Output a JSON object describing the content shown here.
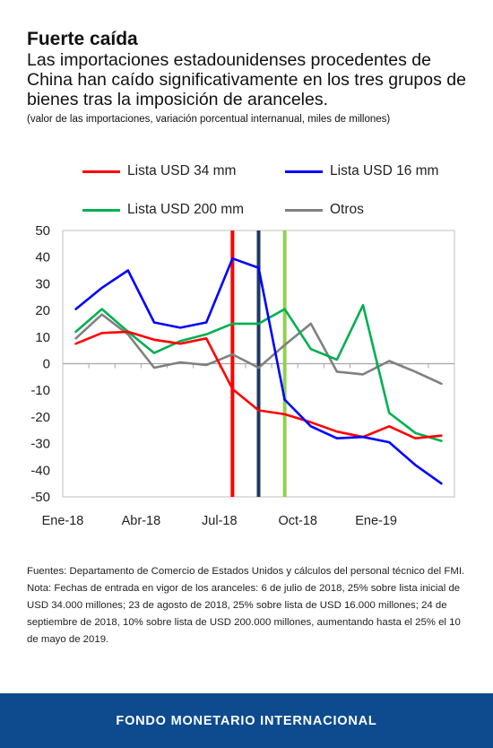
{
  "header": {
    "title": "Fuerte caída",
    "subtitle": "Las importaciones estadounidenses procedentes de China han caído significativamente en los tres grupos de bienes tras la imposición de aranceles.",
    "units": "(valor de las importaciones, variación porcentual internanual, miles de millones)"
  },
  "legend": {
    "items": [
      {
        "label": "Lista USD 34 mm",
        "color": "#ff0000"
      },
      {
        "label": "Lista USD 16 mm",
        "color": "#0000ff"
      },
      {
        "label": "Lista USD 200 mm",
        "color": "#00b050"
      },
      {
        "label": "Otros",
        "color": "#808080"
      }
    ]
  },
  "chart_data": {
    "type": "line",
    "title": "",
    "xlabel": "",
    "ylabel": "",
    "ylim": [
      -50,
      50
    ],
    "yticks": [
      50,
      40,
      30,
      20,
      10,
      0,
      -10,
      -20,
      -30,
      -40,
      -50
    ],
    "x": [
      "Ene-18",
      "Feb-18",
      "Mar-18",
      "Abr-18",
      "May-18",
      "Jun-18",
      "Jul-18",
      "Ago-18",
      "Sep-18",
      "Oct-18",
      "Nov-18",
      "Dic-18",
      "Ene-19",
      "Feb-19",
      "Mar-19"
    ],
    "xtick_labels": [
      {
        "index": 0,
        "label": "Ene-18"
      },
      {
        "index": 3,
        "label": "Abr-18"
      },
      {
        "index": 6,
        "label": "Jul-18"
      },
      {
        "index": 9,
        "label": "Oct-18"
      },
      {
        "index": 12,
        "label": "Ene-19"
      }
    ],
    "series": [
      {
        "name": "Lista USD 34 mm",
        "color": "#ff0000",
        "values": [
          7.5,
          11.5,
          12,
          9,
          7.5,
          9.5,
          -9.5,
          -17.5,
          -19,
          -22,
          -25.5,
          -27.5,
          -23.5,
          -28,
          -27
        ]
      },
      {
        "name": "Lista USD 16 mm",
        "color": "#0000ff",
        "values": [
          20.5,
          28.5,
          35,
          15.5,
          13.5,
          15.5,
          39.5,
          36,
          -13.5,
          -23.5,
          -28,
          -27.5,
          -29.5,
          -38,
          -45
        ]
      },
      {
        "name": "Lista USD 200 mm",
        "color": "#00b050",
        "values": [
          12,
          20.5,
          12,
          4,
          8.5,
          11,
          15,
          15,
          20.5,
          5.5,
          1.5,
          22,
          -18.5,
          -26,
          -29
        ]
      },
      {
        "name": "Otros",
        "color": "#808080",
        "values": [
          9.5,
          18.5,
          11,
          -1.5,
          0.5,
          -0.5,
          3.5,
          -1.5,
          7,
          15,
          -3,
          -4,
          1,
          -3,
          -7.5
        ]
      }
    ],
    "vertical_markers": [
      {
        "x": 6,
        "color": "#ff0000"
      },
      {
        "x": 7,
        "color": "#1f3864"
      },
      {
        "x": 8,
        "color": "#92d050"
      }
    ],
    "grid": false,
    "legend_position": "top"
  },
  "notes": {
    "sources": "Fuentes: Departamento de Comercio de Estados Unidos y cálculos del personal técnico del FMI.",
    "note": "Nota: Fechas de entrada en vigor de los aranceles: 6 de julio de 2018, 25% sobre lista inicial de USD 34.000 millones; 23 de agosto de 2018, 25% sobre lista de USD 16.000 millones; 24 de septiembre de 2018, 10% sobre lista de USD 200.000 millones, aumentando hasta el 25% el 10 de mayo de 2019."
  },
  "footer": {
    "org_name": "FONDO MONETARIO INTERNACIONAL",
    "color": "#0d4b8e"
  }
}
